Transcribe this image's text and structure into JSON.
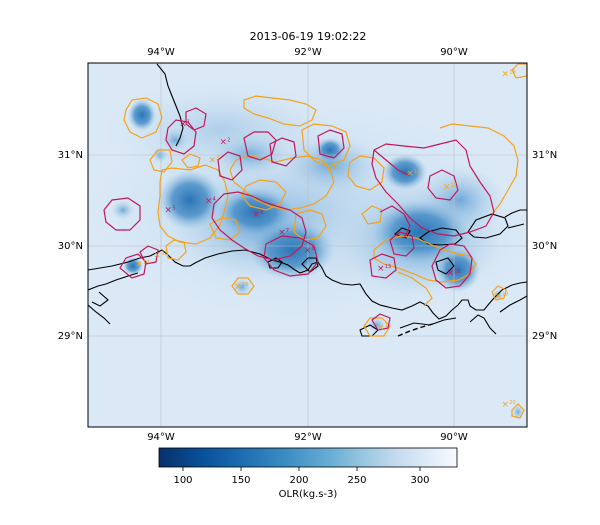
{
  "title": "2013-06-19 19:02:22",
  "map": {
    "x_ticks": [
      "94°W",
      "92°W",
      "90°W"
    ],
    "y_ticks": [
      "31°N",
      "30°N",
      "29°N"
    ],
    "lon_range": [
      -95.0,
      -89.0
    ],
    "lat_range": [
      28.0,
      32.0
    ],
    "grid": true
  },
  "colorbar": {
    "label": "OLR(kg.s-3)",
    "ticks": [
      "100",
      "150",
      "200",
      "250",
      "300"
    ],
    "range": [
      80,
      330
    ],
    "colormap": [
      "#08306b",
      "#08519c",
      "#2171b5",
      "#4292c6",
      "#6baed6",
      "#9ecae1",
      "#c6dbef",
      "#deebf7",
      "#f7fbff"
    ]
  },
  "colors": {
    "contour_orange": "#f4a21b",
    "contour_magenta": "#c2185b",
    "coast": "#000000",
    "background": "#dbe9f6"
  },
  "cells": [
    {
      "id": "1",
      "lon": -93.7,
      "lat": 31.35,
      "olr": 150
    },
    {
      "id": "2",
      "lon": -93.15,
      "lat": 31.15,
      "olr": 170
    },
    {
      "id": "3",
      "lon": -93.3,
      "lat": 30.95,
      "olr": 185
    },
    {
      "id": "4",
      "lon": -93.35,
      "lat": 30.5,
      "olr": 110
    },
    {
      "id": "5",
      "lon": -93.9,
      "lat": 30.4,
      "olr": 160
    },
    {
      "id": "6",
      "lon": -92.7,
      "lat": 30.35,
      "olr": 140
    },
    {
      "id": "7",
      "lon": -92.35,
      "lat": 30.15,
      "olr": 155
    },
    {
      "id": "8",
      "lon": -92.0,
      "lat": 29.95,
      "olr": 130
    },
    {
      "id": "9",
      "lon": -91.7,
      "lat": 30.85,
      "olr": 190
    },
    {
      "id": "10",
      "lon": -90.6,
      "lat": 30.8,
      "olr": 180
    },
    {
      "id": "11",
      "lon": -90.1,
      "lat": 30.65,
      "olr": 200
    },
    {
      "id": "12",
      "lon": -90.05,
      "lat": 29.7,
      "olr": 150
    },
    {
      "id": "13",
      "lon": -91.0,
      "lat": 29.75,
      "olr": 170
    },
    {
      "id": "14",
      "lon": -94.3,
      "lat": 29.8,
      "olr": 175
    },
    {
      "id": "15",
      "lon": -94.05,
      "lat": 29.9,
      "olr": 190
    },
    {
      "id": "16",
      "lon": -92.95,
      "lat": 29.55,
      "olr": 200
    },
    {
      "id": "17",
      "lon": -91.0,
      "lat": 29.1,
      "olr": 205
    },
    {
      "id": "18",
      "lon": -89.4,
      "lat": 29.45,
      "olr": 215
    },
    {
      "id": "19",
      "lon": -89.3,
      "lat": 31.9,
      "olr": 240
    },
    {
      "id": "20",
      "lon": -89.3,
      "lat": 28.25,
      "olr": 235
    }
  ]
}
